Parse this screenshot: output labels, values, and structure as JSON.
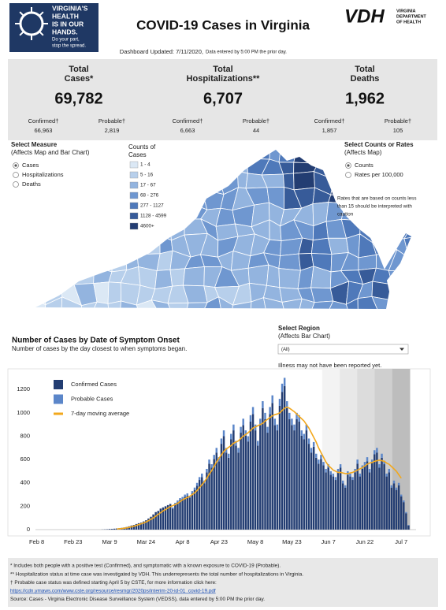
{
  "header": {
    "logo_lines": [
      "VIRGINIA'S",
      "HEALTH",
      "IS IN OUR",
      "HANDS."
    ],
    "logo_tagline": [
      "Do your part,",
      "stop the spread."
    ],
    "title": "COVID-19 Cases in Virginia",
    "vdh_mark": "VDH",
    "vdh_name": [
      "VIRGINIA",
      "DEPARTMENT",
      "OF HEALTH"
    ],
    "updated": "Dashboard Updated: 7/11/2020,",
    "updated_note": "Data entered by 5:00 PM the prior day."
  },
  "stats": [
    {
      "label": [
        "Total",
        "Cases*"
      ],
      "total": "69,782",
      "confirmed_label": "Confirmed†",
      "confirmed": "66,963",
      "probable_label": "Probable†",
      "probable": "2,819"
    },
    {
      "label": [
        "Total",
        "Hospitalizations**"
      ],
      "total": "6,707",
      "confirmed_label": "Confirmed†",
      "confirmed": "6,663",
      "probable_label": "Probable†",
      "probable": "44"
    },
    {
      "label": [
        "Total",
        "Deaths"
      ],
      "total": "1,962",
      "confirmed_label": "Confirmed†",
      "confirmed": "1,857",
      "probable_label": "Probable†",
      "probable": "105"
    }
  ],
  "map_controls": {
    "measure_title": "Select Measure",
    "measure_note": "(Affects Map and Bar Chart)",
    "measures": [
      "Cases",
      "Hospitalizations",
      "Deaths"
    ],
    "rate_title": "Select Counts or Rates",
    "rate_note": "(Affects Map)",
    "rates": [
      "Counts",
      "Rates per 100,000"
    ],
    "caution": [
      "Rates that are based on counts less",
      "than 15 should be interpreted with",
      "caution"
    ]
  },
  "map_legend": {
    "title": [
      "Counts of",
      "Cases"
    ],
    "bins": [
      {
        "label": "1 - 4",
        "color": "#dbe8f5"
      },
      {
        "label": "5 - 16",
        "color": "#b7cfeb"
      },
      {
        "label": "17 - 67",
        "color": "#93b4df"
      },
      {
        "label": "68 - 276",
        "color": "#6f97d0"
      },
      {
        "label": "277 - 1127",
        "color": "#4f79ba"
      },
      {
        "label": "1128 - 4599",
        "color": "#375b99"
      },
      {
        "label": "4600+",
        "color": "#233d72"
      }
    ]
  },
  "bar_section": {
    "title": "Number of Cases by Date of Symptom Onset",
    "subtitle": "Number of cases by the day closest to when symptoms began.",
    "region_label": "Select Region",
    "region_note": "(Affects Bar Chart)",
    "region_value": "(All)",
    "reporting_note": "Illness may not have been reported yet."
  },
  "chart_data": {
    "type": "bar",
    "ylim": [
      0,
      1350
    ],
    "yticks": [
      0,
      200,
      400,
      600,
      800,
      1000,
      1200
    ],
    "grid": false,
    "categories": [
      "Feb 8",
      null,
      null,
      null,
      null,
      null,
      null,
      null,
      null,
      null,
      null,
      null,
      null,
      null,
      null,
      "Feb 23",
      null,
      null,
      null,
      null,
      null,
      null,
      null,
      null,
      null,
      null,
      null,
      null,
      null,
      null,
      "Mar 9",
      null,
      null,
      null,
      null,
      null,
      null,
      null,
      null,
      null,
      null,
      null,
      null,
      null,
      null,
      "Mar 24",
      null,
      null,
      null,
      null,
      null,
      null,
      null,
      null,
      null,
      null,
      null,
      null,
      null,
      null,
      "Apr 8",
      null,
      null,
      null,
      null,
      null,
      null,
      null,
      null,
      null,
      null,
      null,
      null,
      null,
      null,
      "Apr 23",
      null,
      null,
      null,
      null,
      null,
      null,
      null,
      null,
      null,
      null,
      null,
      null,
      null,
      null,
      "May 8",
      null,
      null,
      null,
      null,
      null,
      null,
      null,
      null,
      null,
      null,
      null,
      null,
      null,
      null,
      "May 23",
      null,
      null,
      null,
      null,
      null,
      null,
      null,
      null,
      null,
      null,
      null,
      null,
      null,
      null,
      "Jun 7",
      null,
      null,
      null,
      null,
      null,
      null,
      null,
      null,
      null,
      null,
      null,
      null,
      null,
      null,
      "Jun 22",
      null,
      null,
      null,
      null,
      null,
      null,
      null,
      null,
      null,
      null,
      null,
      null,
      null,
      null,
      "Jul 7",
      null,
      null,
      null
    ],
    "series": [
      {
        "name": "Confirmed Cases",
        "color": "#233d72",
        "values": [
          0,
          0,
          0,
          0,
          0,
          0,
          0,
          0,
          0,
          0,
          0,
          0,
          0,
          0,
          0,
          0,
          0,
          0,
          0,
          0,
          0,
          0,
          0,
          0,
          0,
          0,
          0,
          1,
          2,
          3,
          5,
          6,
          8,
          10,
          12,
          15,
          18,
          22,
          28,
          35,
          40,
          48,
          55,
          60,
          70,
          80,
          95,
          110,
          130,
          150,
          160,
          180,
          190,
          200,
          210,
          220,
          180,
          220,
          235,
          255,
          265,
          280,
          290,
          275,
          310,
          340,
          375,
          425,
          450,
          395,
          490,
          565,
          530,
          605,
          660,
          585,
          735,
          800,
          660,
          615,
          775,
          850,
          720,
          660,
          830,
          895,
          805,
          755,
          925,
          990,
          850,
          720,
          895,
          1040,
          945,
          830,
          990,
          1085,
          895,
          850,
          1060,
          1180,
          1230,
          1040,
          945,
          895,
          850,
          945,
          925,
          805,
          775,
          850,
          735,
          660,
          710,
          615,
          565,
          605,
          550,
          490,
          530,
          470,
          455,
          425,
          490,
          530,
          395,
          360,
          470,
          455,
          425,
          490,
          565,
          455,
          520,
          550,
          585,
          490,
          570,
          645,
          660,
          530,
          615,
          560,
          455,
          490,
          360,
          395,
          340,
          380,
          285,
          235,
          140,
          35
        ]
      },
      {
        "name": "Probable Cases",
        "color": "#5b86c9",
        "values": [
          0,
          0,
          0,
          0,
          0,
          0,
          0,
          0,
          0,
          0,
          0,
          0,
          0,
          0,
          0,
          0,
          0,
          0,
          0,
          0,
          0,
          0,
          0,
          0,
          0,
          0,
          0,
          0,
          0,
          0,
          0,
          0,
          0,
          0,
          0,
          0,
          0,
          0,
          0,
          0,
          0,
          0,
          0,
          0,
          0,
          0,
          0,
          0,
          0,
          0,
          0,
          0,
          0,
          0,
          0,
          0,
          10,
          10,
          15,
          15,
          15,
          20,
          20,
          15,
          20,
          20,
          25,
          25,
          30,
          25,
          30,
          35,
          30,
          35,
          40,
          35,
          45,
          50,
          40,
          35,
          45,
          50,
          40,
          40,
          50,
          55,
          45,
          45,
          55,
          60,
          50,
          40,
          55,
          60,
          55,
          50,
          60,
          65,
          55,
          50,
          60,
          70,
          70,
          60,
          55,
          55,
          50,
          55,
          55,
          45,
          45,
          50,
          45,
          40,
          40,
          35,
          35,
          35,
          30,
          30,
          30,
          30,
          25,
          25,
          30,
          30,
          25,
          20,
          30,
          25,
          25,
          30,
          35,
          25,
          30,
          30,
          35,
          30,
          30,
          35,
          40,
          30,
          35,
          30,
          25,
          30,
          20,
          25,
          20,
          20,
          15,
          15,
          10,
          5
        ]
      },
      {
        "name": "7-day moving average",
        "color": "#f2a81d",
        "type": "line",
        "values": [
          null,
          null,
          null,
          null,
          null,
          null,
          null,
          null,
          null,
          null,
          null,
          null,
          null,
          null,
          null,
          null,
          null,
          null,
          null,
          null,
          null,
          null,
          null,
          null,
          null,
          null,
          null,
          null,
          null,
          null,
          null,
          null,
          null,
          5,
          7,
          9,
          12,
          15,
          19,
          24,
          30,
          36,
          43,
          50,
          57,
          66,
          76,
          88,
          100,
          115,
          130,
          145,
          160,
          172,
          185,
          197,
          205,
          215,
          225,
          240,
          255,
          265,
          275,
          285,
          300,
          315,
          335,
          360,
          385,
          410,
          440,
          475,
          505,
          540,
          580,
          610,
          640,
          670,
          690,
          705,
          720,
          740,
          750,
          760,
          780,
          800,
          815,
          830,
          850,
          870,
          880,
          890,
          900,
          910,
          930,
          945,
          960,
          975,
          985,
          990,
          1000,
          1020,
          1040,
          1050,
          1040,
          1025,
          1010,
          990,
          970,
          950,
          930,
          900,
          870,
          830,
          790,
          750,
          700,
          660,
          620,
          580,
          550,
          530,
          510,
          500,
          490,
          490,
          485,
          480,
          480,
          485,
          490,
          500,
          510,
          520,
          530,
          545,
          560,
          570,
          575,
          585,
          590,
          595,
          590,
          585,
          570,
          560,
          540,
          520,
          500,
          470,
          440,
          null,
          null,
          null
        ]
      }
    ]
  },
  "footnotes": [
    "* Includes both people with a positive test (Confirmed), and symptomatic with a known exposure to COVID-19 (Probable).",
    "** Hospitalization status at time case was investigated by VDH. This underrepresents the total number of hospitalizations in Virginia.",
    "† Probable case status was defined starting April 5 by CSTE, for more information click here:",
    "https://cdn.ymaws.com/www.cste.org/resource/resmgr/2020ps/interim-20-id-01_covid-19.pdf",
    "Source:  Cases - Virginia Electronic Disease Surveillance System (VEDSS), data entered by 5:00 PM the prior day."
  ]
}
